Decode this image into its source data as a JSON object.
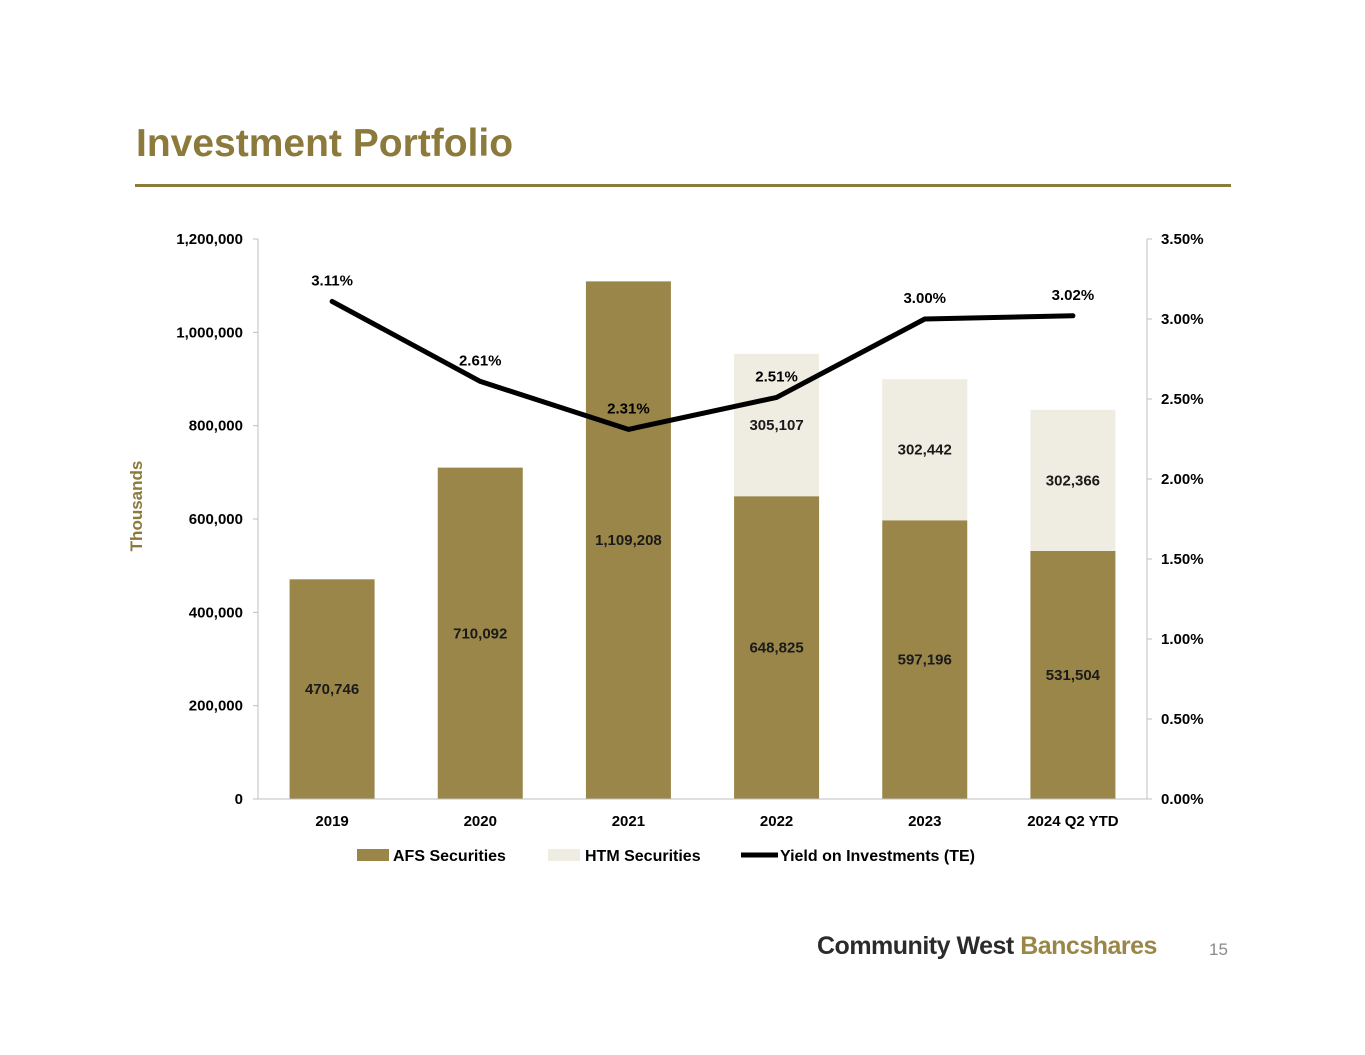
{
  "title": "Investment Portfolio",
  "footer": {
    "company_part1": "Community West",
    "company_part2": "Bancshares",
    "page_number": "15"
  },
  "colors": {
    "accent": "#8b7a3c",
    "afs": "#9a8649",
    "htm": "#efece1",
    "line": "#000000",
    "logo_dark": "#2b2b2b",
    "logo_gold": "#9a8747"
  },
  "chart_data": {
    "type": "bar",
    "stacked": true,
    "categories": [
      "2019",
      "2020",
      "2021",
      "2022",
      "2023",
      "2024 Q2 YTD"
    ],
    "series": [
      {
        "name": "AFS Securities",
        "kind": "bar",
        "values": [
          470746,
          710092,
          1109208,
          648825,
          597196,
          531504
        ],
        "labels": [
          "470,746",
          "710,092",
          "1,109,208",
          "648,825",
          "597,196",
          "531,504"
        ]
      },
      {
        "name": "HTM Securities",
        "kind": "bar",
        "values": [
          0,
          0,
          0,
          305107,
          302442,
          302366
        ],
        "labels": [
          "",
          "",
          "",
          "305,107",
          "302,442",
          "302,366"
        ]
      },
      {
        "name": "Yield on Investments (TE)",
        "kind": "line",
        "axis": "right",
        "values": [
          3.11,
          2.61,
          2.31,
          2.51,
          3.0,
          3.02
        ],
        "labels": [
          "3.11%",
          "2.61%",
          "2.31%",
          "2.51%",
          "3.00%",
          "3.02%"
        ]
      }
    ],
    "ylabel": "Thousands",
    "ylim": [
      0,
      1200000
    ],
    "y_ticks": [
      "0",
      "200,000",
      "400,000",
      "600,000",
      "800,000",
      "1,000,000",
      "1,200,000"
    ],
    "y2lim": [
      0,
      3.5
    ],
    "y2_ticks": [
      "0.00%",
      "0.50%",
      "1.00%",
      "1.50%",
      "2.00%",
      "2.50%",
      "3.00%",
      "3.50%"
    ],
    "legend": "bottom"
  }
}
